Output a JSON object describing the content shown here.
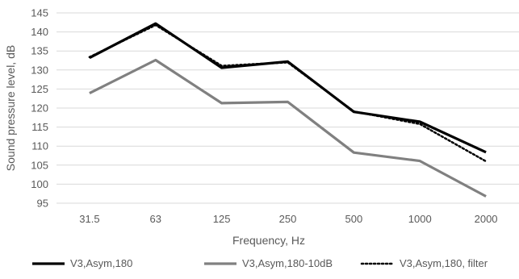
{
  "chart_data": {
    "type": "line",
    "title": "",
    "xlabel": "Frequency, Hz",
    "ylabel": "Sound pressure level, dB",
    "categories": [
      "31.5",
      "63",
      "125",
      "250",
      "500",
      "1000",
      "2000"
    ],
    "ylim": [
      95,
      145
    ],
    "yticks": [
      95,
      100,
      105,
      110,
      115,
      120,
      125,
      130,
      135,
      140,
      145
    ],
    "grid": true,
    "legend_position": "bottom",
    "series": [
      {
        "name": "V3,Asym,180",
        "values": [
          133.2,
          142.2,
          130.6,
          132.2,
          119.0,
          116.4,
          108.4
        ],
        "color": "#000000",
        "style": "solid"
      },
      {
        "name": "V3,Asym,180-10dB",
        "values": [
          123.9,
          132.6,
          121.3,
          121.6,
          108.3,
          106.1,
          96.8
        ],
        "color": "#808080",
        "style": "solid"
      },
      {
        "name": "V3,Asym,180, filter",
        "values": [
          133.4,
          141.8,
          131.1,
          132.0,
          119.1,
          115.8,
          106.0
        ],
        "color": "#000000",
        "style": "dotted"
      }
    ]
  }
}
